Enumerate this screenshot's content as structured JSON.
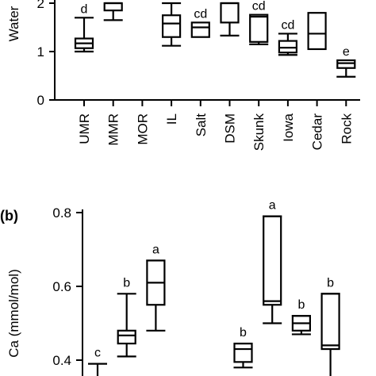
{
  "chart_data": [
    {
      "panel_label": "",
      "type": "box",
      "ylabel": "Water",
      "xlabel": "",
      "ylim": [
        0,
        2
      ],
      "yticks": [
        0,
        1,
        2
      ],
      "categories": [
        "UMR",
        "MMR",
        "MOR",
        "IL",
        "Salt",
        "DSM",
        "Skunk",
        "Iowa",
        "Cedar",
        "Rock"
      ],
      "series": [
        {
          "boxes": [
            {
              "category": "UMR",
              "min": 1.0,
              "q1": 1.07,
              "median": 1.17,
              "q3": 1.27,
              "max": 1.7,
              "letter": "d"
            },
            {
              "category": "MMR",
              "min": 1.65,
              "q1": 1.85,
              "median": 2.0,
              "q3": 2.0,
              "max": 2.0,
              "letter": ""
            },
            {
              "category": "MOR",
              "min": null,
              "q1": null,
              "median": null,
              "q3": null,
              "max": null,
              "letter": ""
            },
            {
              "category": "IL",
              "min": 1.12,
              "q1": 1.3,
              "median": 1.58,
              "q3": 1.75,
              "max": 2.0,
              "letter": ""
            },
            {
              "category": "Salt",
              "min": 1.3,
              "q1": 1.3,
              "median": 1.5,
              "q3": 1.6,
              "max": 1.6,
              "letter": "cd"
            },
            {
              "category": "DSM",
              "min": 1.33,
              "q1": 1.6,
              "median": 2.0,
              "q3": 2.0,
              "max": 2.0,
              "letter": ""
            },
            {
              "category": "Skunk",
              "min": 1.15,
              "q1": 1.2,
              "median": 1.72,
              "q3": 1.76,
              "max": 1.76,
              "letter": "cd"
            },
            {
              "category": "Iowa",
              "min": 0.93,
              "q1": 0.98,
              "median": 1.08,
              "q3": 1.22,
              "max": 1.37,
              "letter": "cd"
            },
            {
              "category": "Cedar",
              "min": 1.05,
              "q1": 1.05,
              "median": 1.37,
              "q3": 1.8,
              "max": 1.8,
              "letter": ""
            },
            {
              "category": "Rock",
              "min": 0.48,
              "q1": 0.66,
              "median": 0.76,
              "q3": 0.82,
              "max": 0.82,
              "letter": "e"
            }
          ]
        }
      ]
    },
    {
      "panel_label": "(b)",
      "type": "box",
      "ylabel": "Ca (mmol/mol)",
      "xlabel": "",
      "ylim": [
        0.4,
        0.8
      ],
      "yticks": [
        0.4,
        0.6,
        0.8
      ],
      "series": [
        {
          "boxes": [
            {
              "category": "UMR",
              "min": null,
              "q1": null,
              "median": null,
              "q3": null,
              "max": 0.39,
              "letter": "c"
            },
            {
              "category": "MMR",
              "min": 0.41,
              "q1": 0.445,
              "median": 0.467,
              "q3": 0.48,
              "max": 0.58,
              "letter": "b"
            },
            {
              "category": "MOR",
              "min": 0.48,
              "q1": 0.55,
              "median": 0.61,
              "q3": 0.67,
              "max": 0.67,
              "letter": "a"
            },
            {
              "category": "IL",
              "min": null,
              "q1": null,
              "median": null,
              "q3": null,
              "max": null,
              "letter": ""
            },
            {
              "category": "Salt",
              "min": null,
              "q1": null,
              "median": null,
              "q3": null,
              "max": null,
              "letter": ""
            },
            {
              "category": "DSM",
              "min": 0.38,
              "q1": 0.395,
              "median": 0.43,
              "q3": 0.445,
              "max": 0.445,
              "letter": "b"
            },
            {
              "category": "Skunk",
              "min": 0.5,
              "q1": 0.55,
              "median": 0.56,
              "q3": 0.79,
              "max": 0.79,
              "letter": "a"
            },
            {
              "category": "Iowa",
              "min": 0.47,
              "q1": 0.48,
              "median": 0.5,
              "q3": 0.52,
              "max": 0.52,
              "letter": "b"
            },
            {
              "category": "Cedar",
              "min": null,
              "q1": 0.43,
              "median": 0.44,
              "q3": 0.58,
              "max": 0.58,
              "letter": "b"
            },
            {
              "category": "Rock",
              "min": null,
              "q1": null,
              "median": null,
              "q3": null,
              "max": null,
              "letter": ""
            }
          ]
        }
      ]
    }
  ]
}
